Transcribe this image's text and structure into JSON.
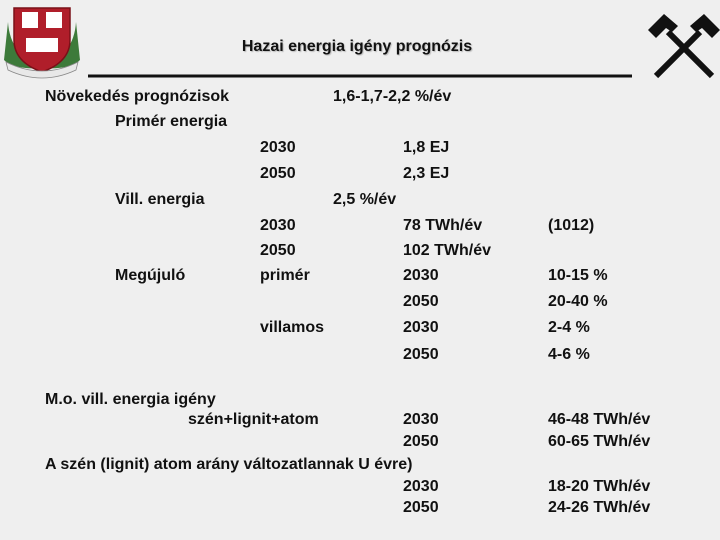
{
  "title": "Hazai energia igény prognózis",
  "lines": [
    [
      "Növekedés prognózisok",
      "1,6-1,7-2,2 %/év"
    ],
    [
      "Primér energia"
    ],
    [
      "2030",
      "1,8 EJ"
    ],
    [
      "2050",
      "2,3 EJ"
    ],
    [
      "Vill. energia",
      "2,5 %/év"
    ],
    [
      "2030",
      "78 TWh/év",
      "(1012)"
    ],
    [
      "2050",
      "102 TWh/év"
    ],
    [
      "Megújuló",
      "primér",
      "2030",
      "10-15 %"
    ],
    [
      "2050",
      "20-40 %"
    ],
    [
      "villamos",
      "2030",
      "2-4 %"
    ],
    [
      "2050",
      "4-6 %"
    ],
    [
      "M.o. vill. energia igény"
    ],
    [
      "szén+lignit+atom",
      "2030",
      "46-48 TWh/év"
    ],
    [
      "2050",
      "60-65 TWh/év"
    ],
    [
      "A szén (lignit) atom arány változatlannak U évre)"
    ],
    [
      "2030",
      "18-20 TWh/év"
    ],
    [
      "2050",
      "24-26 TWh/év"
    ]
  ]
}
